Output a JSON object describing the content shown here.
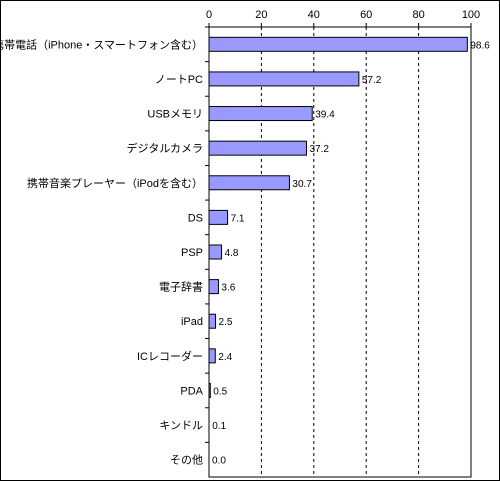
{
  "chart_data": {
    "type": "bar",
    "orientation": "horizontal",
    "categories": [
      "携帯電話（iPhone・スマートフォン含む）",
      "ノートPC",
      "USBメモリ",
      "デジタルカメラ",
      "携帯音楽プレーヤー（iPodを含む）",
      "DS",
      "PSP",
      "電子辞書",
      "iPad",
      "ICレコーダー",
      "PDA",
      "キンドル",
      "その他"
    ],
    "values": [
      98.6,
      57.2,
      39.4,
      37.2,
      30.7,
      7.1,
      4.8,
      3.6,
      2.5,
      2.4,
      0.5,
      0.1,
      0.0
    ],
    "value_labels": [
      "98.6",
      "57.2",
      "39.4",
      "37.2",
      "30.7",
      "7.1",
      "4.8",
      "3.6",
      "2.5",
      "2.4",
      "0.5",
      "0.1",
      "0.0"
    ],
    "xlim": [
      0,
      100
    ],
    "xticks": [
      "0",
      "20",
      "40",
      "60",
      "80",
      "100"
    ],
    "axis_position": "top",
    "grid": true,
    "grid_style": "dashed",
    "bar_color": "#9999ff",
    "bar_edge_color": "#000000",
    "title": "",
    "xlabel": "",
    "ylabel": ""
  }
}
